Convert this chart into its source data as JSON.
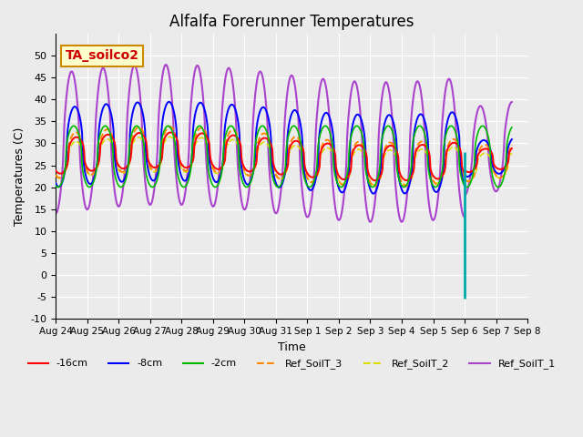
{
  "title": "Alfalfa Forerunner Temperatures",
  "xlabel": "Time",
  "ylabel": "Temperatures (C)",
  "ylim": [
    -10,
    55
  ],
  "yticks": [
    -10,
    -5,
    0,
    5,
    10,
    15,
    20,
    25,
    30,
    35,
    40,
    45,
    50
  ],
  "bg_color": "#ebebeb",
  "grid_color": "#ffffff",
  "colors": {
    "neg16cm": "#ff0000",
    "neg8cm": "#0000ff",
    "neg2cm": "#00bb00",
    "ref3": "#ff8800",
    "ref2": "#dddd00",
    "ref1": "#aa44cc"
  },
  "vline_color": "#00aaaa",
  "tick_labels": [
    "Aug 24",
    "Aug 25",
    "Aug 26",
    "Aug 27",
    "Aug 28",
    "Aug 29",
    "Aug 30",
    "Aug 31",
    "Sep 1",
    "Sep 2",
    "Sep 3",
    "Sep 4",
    "Sep 5",
    "Sep 6",
    "Sep 7",
    "Sep 8"
  ],
  "annotation": {
    "text": "TA_soilco2",
    "facecolor": "#ffffcc",
    "edgecolor": "#cc8800",
    "textcolor": "#cc0000"
  },
  "legend_labels": [
    "-16cm",
    "-8cm",
    "-2cm",
    "Ref_SoilT_3",
    "Ref_SoilT_2",
    "Ref_SoilT_1"
  ]
}
